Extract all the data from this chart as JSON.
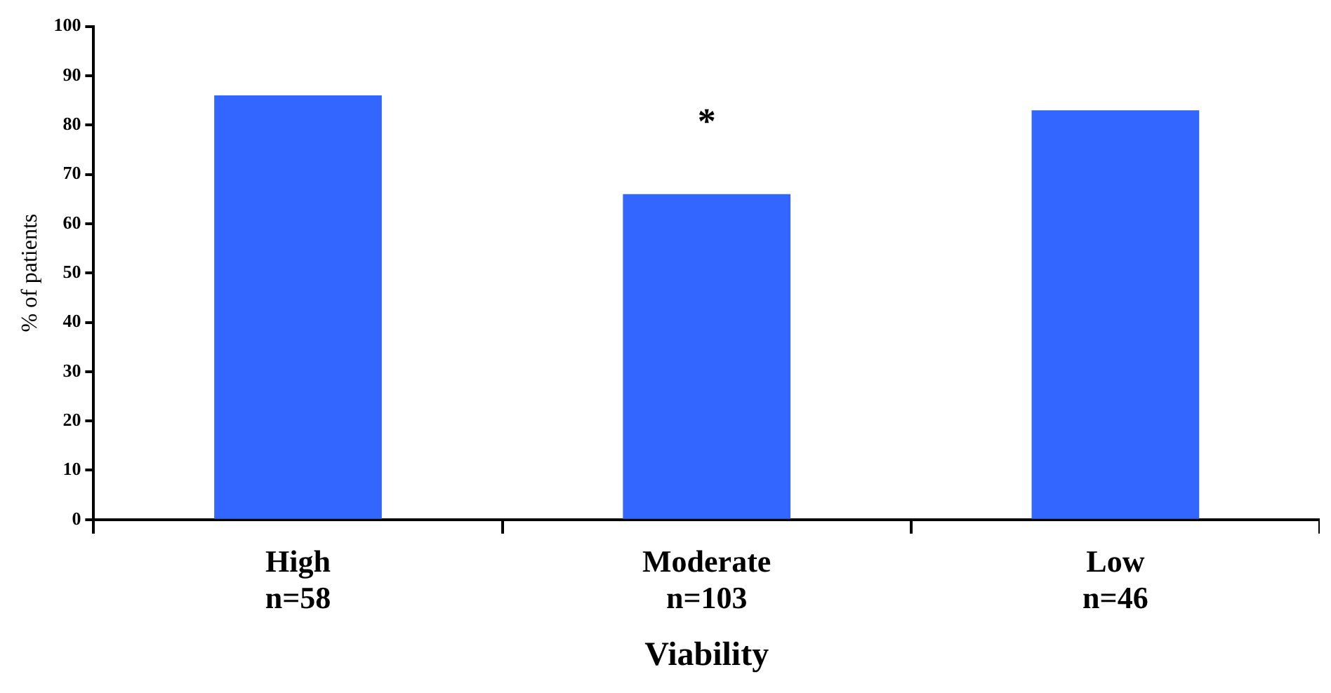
{
  "chart_data": {
    "type": "bar",
    "categories": [
      "High\nn=58",
      "Moderate\nn=103",
      "Low\nn=46"
    ],
    "values": [
      86,
      66,
      83
    ],
    "color": "#3366ff",
    "xlabel": "Viability",
    "ylabel": "% of patients",
    "ylim": [
      0,
      100
    ],
    "yticks": [
      0,
      10,
      20,
      30,
      40,
      50,
      60,
      70,
      80,
      90,
      100
    ],
    "grid": false,
    "legend": false,
    "annotations": [
      "*"
    ]
  }
}
